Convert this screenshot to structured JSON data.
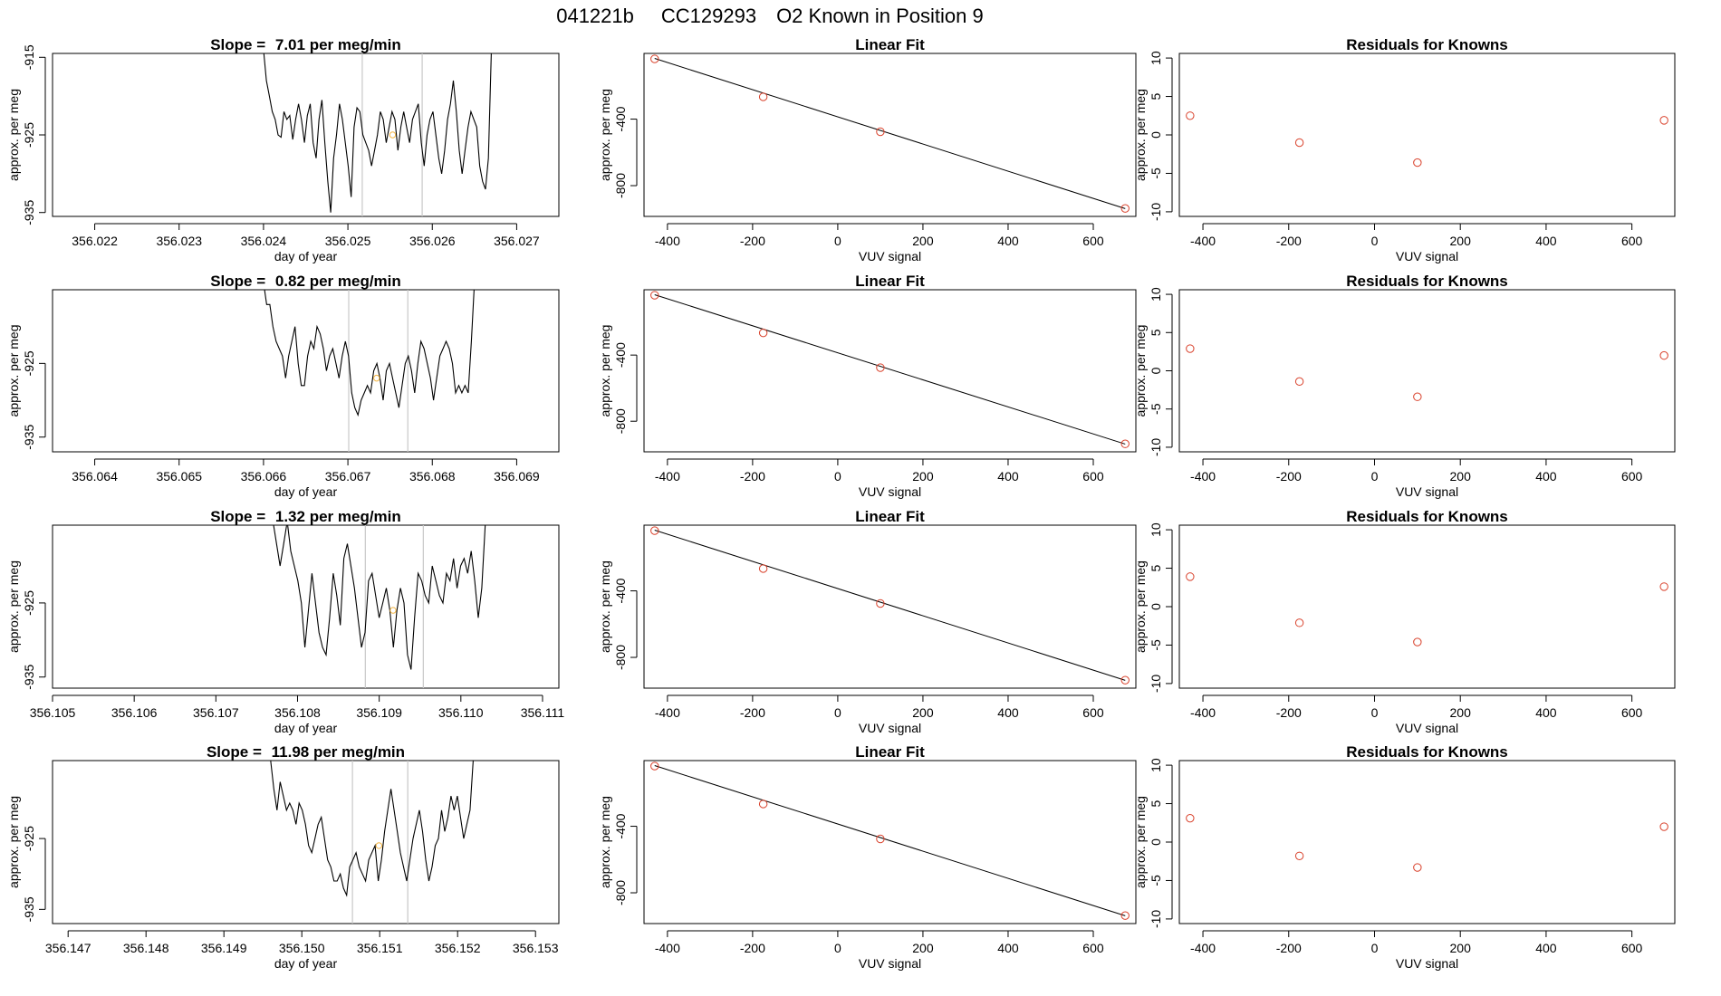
{
  "header": {
    "run_id": "041221b",
    "cylinder": "CC129293",
    "description": "O2 Known in Position  9"
  },
  "colors": {
    "trace": "#000000",
    "cursor_lines": "#c8c8c8",
    "highlight_point": "#f5b642",
    "fit_points": "#d9412b"
  },
  "labels": {
    "timeseries_xlabel": "day of year",
    "timeseries_ylabel": "approx. per meg",
    "fit_title": "Linear Fit",
    "fit_xlabel": "VUV signal",
    "fit_ylabel": "approx. per meg",
    "resid_title": "Residuals for Knowns",
    "resid_xlabel": "VUV signal",
    "resid_ylabel": "approx. per meg"
  },
  "chart_data": [
    {
      "type": "line",
      "panel": "timeseries",
      "row": 1,
      "title_prefix": "Slope = ",
      "slope": "7.01",
      "title_suffix": " per meg/min",
      "xlim": [
        356.0215,
        356.0275
      ],
      "ylim": [
        -935.5,
        -914.5
      ],
      "xticks": [
        "356.022",
        "356.023",
        "356.024",
        "356.025",
        "356.026",
        "356.027"
      ],
      "yticks": [
        "-915",
        "-925",
        "-935"
      ],
      "x_start": 356.024,
      "x_end": 356.0267,
      "y": [
        -914,
        -918,
        -920,
        -922,
        -923,
        -925,
        -925.3,
        -922,
        -923,
        -922.5,
        -925.6,
        -923,
        -921,
        -923,
        -926,
        -922.5,
        -921,
        -926,
        -928,
        -923,
        -920.5,
        -926,
        -931,
        -935,
        -928,
        -925,
        -921,
        -923,
        -926,
        -929,
        -933,
        -924,
        -921.5,
        -922,
        -925,
        -926,
        -927,
        -929,
        -927,
        -925,
        -922,
        -923,
        -926,
        -924,
        -922,
        -923,
        -927,
        -924,
        -922,
        -924,
        -926,
        -923,
        -922,
        -921,
        -926,
        -929,
        -925,
        -923,
        -922,
        -925,
        -928,
        -930,
        -927,
        -923,
        -921,
        -918,
        -922,
        -927,
        -930,
        -927,
        -924,
        -922,
        -923,
        -924,
        -929,
        -931,
        -932,
        -928,
        -914
      ],
      "cursor_lines": [
        356.02517,
        356.02588
      ],
      "highlight_point": [
        356.02553,
        -925
      ]
    },
    {
      "type": "scatter",
      "panel": "linear_fit",
      "row": 1,
      "x": [
        -430,
        -175,
        100,
        675
      ],
      "y": [
        -38,
        -266,
        -476,
        -937
      ],
      "fit_line": {
        "x": [
          -430,
          675
        ],
        "y": [
          -35,
          -938
        ]
      },
      "xlim": [
        -455,
        700
      ],
      "ylim": [
        -985,
        -5
      ],
      "xticks": [
        "-400",
        "-200",
        "0",
        "200",
        "400",
        "600"
      ],
      "yticks": [
        "-400",
        "-800"
      ]
    },
    {
      "type": "scatter",
      "panel": "residuals",
      "row": 1,
      "x": [
        -430,
        -175,
        100,
        675
      ],
      "y": [
        2.5,
        -1,
        -3.6,
        1.9
      ],
      "xlim": [
        -455,
        700
      ],
      "ylim": [
        -10.6,
        10.6
      ],
      "xticks": [
        "-400",
        "-200",
        "0",
        "200",
        "400",
        "600"
      ],
      "yticks": [
        "10",
        "5",
        "0",
        "-5",
        "-10"
      ]
    },
    {
      "type": "line",
      "panel": "timeseries",
      "row": 2,
      "title_prefix": "Slope = ",
      "slope": "0.82",
      "title_suffix": " per meg/min",
      "xlim": [
        356.0635,
        356.0695
      ],
      "ylim": [
        -937,
        -915
      ],
      "xticks": [
        "356.064",
        "356.065",
        "356.066",
        "356.067",
        "356.068",
        "356.069"
      ],
      "yticks": [
        "-925",
        "-935"
      ],
      "x_start": 356.066,
      "x_end": 356.0685,
      "y": [
        -914,
        -917,
        -917,
        -920,
        -922,
        -923,
        -924,
        -927,
        -924,
        -922,
        -920,
        -925,
        -928,
        -928,
        -924,
        -922,
        -923,
        -920,
        -921,
        -923,
        -926,
        -924,
        -923,
        -925,
        -927,
        -924,
        -922,
        -924,
        -929,
        -931,
        -932,
        -930,
        -929,
        -928,
        -929,
        -926,
        -925,
        -927,
        -930,
        -926,
        -925,
        -927,
        -929,
        -931,
        -928,
        -925,
        -924,
        -926,
        -929,
        -925,
        -922,
        -923,
        -925,
        -927,
        -930,
        -927,
        -924,
        -923,
        -922,
        -923,
        -925,
        -929,
        -928,
        -929,
        -928,
        -929,
        -922,
        -914
      ],
      "cursor_lines": [
        356.06701,
        356.06771
      ],
      "highlight_point": [
        356.06734,
        -927
      ]
    },
    {
      "type": "scatter",
      "panel": "linear_fit",
      "row": 2,
      "x": [
        -430,
        -175,
        100,
        675
      ],
      "y": [
        -38,
        -266,
        -476,
        -937
      ],
      "fit_line": {
        "x": [
          -430,
          675
        ],
        "y": [
          -35,
          -938
        ]
      },
      "xlim": [
        -455,
        700
      ],
      "ylim": [
        -985,
        -5
      ],
      "xticks": [
        "-400",
        "-200",
        "0",
        "200",
        "400",
        "600"
      ],
      "yticks": [
        "-400",
        "-800"
      ]
    },
    {
      "type": "scatter",
      "panel": "residuals",
      "row": 2,
      "x": [
        -430,
        -175,
        100,
        675
      ],
      "y": [
        2.9,
        -1.4,
        -3.4,
        2.0
      ],
      "xlim": [
        -455,
        700
      ],
      "ylim": [
        -10.6,
        10.6
      ],
      "xticks": [
        "-400",
        "-200",
        "0",
        "200",
        "400",
        "600"
      ],
      "yticks": [
        "10",
        "5",
        "0",
        "-5",
        "-10"
      ]
    },
    {
      "type": "line",
      "panel": "timeseries",
      "row": 3,
      "title_prefix": "Slope = ",
      "slope": "1.32",
      "title_suffix": " per meg/min",
      "xlim": [
        356.105,
        356.1112
      ],
      "ylim": [
        -936.5,
        -914.5
      ],
      "xticks": [
        "356.105",
        "356.106",
        "356.107",
        "356.108",
        "356.109",
        "356.110",
        "356.111"
      ],
      "yticks": [
        "-925",
        "-935"
      ],
      "x_start": 356.1077,
      "x_end": 356.1103,
      "y": [
        -914,
        -917,
        -920,
        -917,
        -914,
        -918,
        -920,
        -922,
        -925,
        -931,
        -926,
        -921,
        -925,
        -929,
        -931,
        -932,
        -927,
        -921,
        -924,
        -928,
        -919,
        -917,
        -920,
        -923,
        -927,
        -931,
        -929,
        -922,
        -921,
        -924,
        -927,
        -925,
        -923,
        -926,
        -931,
        -926,
        -923,
        -925,
        -932,
        -934,
        -927,
        -921,
        -922,
        -924,
        -925,
        -920,
        -922,
        -924,
        -925,
        -921,
        -922,
        -919,
        -923,
        -920,
        -919,
        -921,
        -918,
        -922,
        -927,
        -923,
        -914
      ],
      "cursor_lines": [
        356.10883,
        356.10954
      ],
      "highlight_point": [
        356.10917,
        -926
      ]
    },
    {
      "type": "scatter",
      "panel": "linear_fit",
      "row": 3,
      "x": [
        -430,
        -175,
        100,
        675
      ],
      "y": [
        -38,
        -266,
        -476,
        -937
      ],
      "fit_line": {
        "x": [
          -430,
          675
        ],
        "y": [
          -35,
          -938
        ]
      },
      "xlim": [
        -455,
        700
      ],
      "ylim": [
        -985,
        -5
      ],
      "xticks": [
        "-400",
        "-200",
        "0",
        "200",
        "400",
        "600"
      ],
      "yticks": [
        "-400",
        "-800"
      ]
    },
    {
      "type": "scatter",
      "panel": "residuals",
      "row": 3,
      "x": [
        -430,
        -175,
        100,
        675
      ],
      "y": [
        3.9,
        -2.1,
        -4.6,
        2.6
      ],
      "xlim": [
        -455,
        700
      ],
      "ylim": [
        -10.6,
        10.6
      ],
      "xticks": [
        "-400",
        "-200",
        "0",
        "200",
        "400",
        "600"
      ],
      "yticks": [
        "10",
        "5",
        "0",
        "-5",
        "-10"
      ]
    },
    {
      "type": "line",
      "panel": "timeseries",
      "row": 4,
      "title_prefix": "Slope = ",
      "slope": "11.98",
      "title_suffix": " per meg/min",
      "xlim": [
        356.1468,
        356.1533
      ],
      "ylim": [
        -937,
        -914
      ],
      "xticks": [
        "356.147",
        "356.148",
        "356.149",
        "356.150",
        "356.151",
        "356.152",
        "356.153"
      ],
      "yticks": [
        "-925",
        "-935"
      ],
      "x_start": 356.1496,
      "x_end": 356.1522,
      "y": [
        -914,
        -918,
        -921,
        -917,
        -919,
        -921,
        -920,
        -921,
        -923,
        -920,
        -921,
        -923,
        -926,
        -927,
        -925,
        -923,
        -922,
        -925,
        -928,
        -929,
        -931,
        -931,
        -930,
        -932,
        -933,
        -929,
        -928,
        -927,
        -929,
        -930,
        -931,
        -928,
        -927,
        -926,
        -931,
        -928,
        -924,
        -921,
        -918,
        -921,
        -924,
        -927,
        -929,
        -931,
        -928,
        -925,
        -923,
        -921,
        -924,
        -928,
        -931,
        -929,
        -926,
        -925,
        -921,
        -924,
        -922,
        -919,
        -921,
        -919,
        -922,
        -925,
        -923,
        -921,
        -914
      ],
      "cursor_lines": [
        356.15065,
        356.15136
      ],
      "highlight_point": [
        356.15099,
        -926
      ]
    },
    {
      "type": "scatter",
      "panel": "linear_fit",
      "row": 4,
      "x": [
        -430,
        -175,
        100,
        675
      ],
      "y": [
        -38,
        -266,
        -476,
        -937
      ],
      "fit_line": {
        "x": [
          -430,
          675
        ],
        "y": [
          -35,
          -938
        ]
      },
      "xlim": [
        -455,
        700
      ],
      "ylim": [
        -985,
        -5
      ],
      "xticks": [
        "-400",
        "-200",
        "0",
        "200",
        "400",
        "600"
      ],
      "yticks": [
        "-400",
        "-800"
      ]
    },
    {
      "type": "scatter",
      "panel": "residuals",
      "row": 4,
      "x": [
        -430,
        -175,
        100,
        675
      ],
      "y": [
        3.1,
        -1.8,
        -3.3,
        2.0
      ],
      "xlim": [
        -455,
        700
      ],
      "ylim": [
        -10.6,
        10.6
      ],
      "xticks": [
        "-400",
        "-200",
        "0",
        "200",
        "400",
        "600"
      ],
      "yticks": [
        "10",
        "5",
        "0",
        "-5",
        "-10"
      ]
    }
  ]
}
